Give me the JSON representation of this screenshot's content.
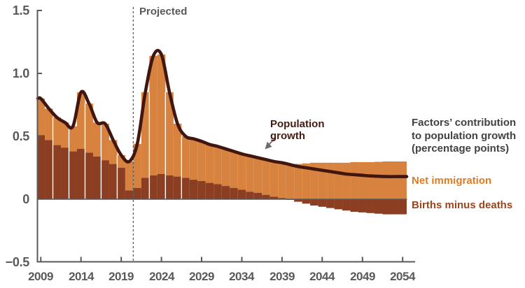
{
  "chart_data": {
    "type": "bar",
    "subtype": "stacked-bars-with-line",
    "title": "",
    "xlabel": "",
    "ylabel": "",
    "grid": "off",
    "ylim": [
      -0.5,
      1.5
    ],
    "x": [
      2009,
      2010,
      2011,
      2012,
      2013,
      2014,
      2015,
      2016,
      2017,
      2018,
      2019,
      2020,
      2021,
      2022,
      2023,
      2024,
      2025,
      2026,
      2027,
      2028,
      2029,
      2030,
      2031,
      2032,
      2033,
      2034,
      2035,
      2036,
      2037,
      2038,
      2039,
      2040,
      2041,
      2042,
      2043,
      2044,
      2045,
      2046,
      2047,
      2048,
      2049,
      2050,
      2051,
      2052,
      2053,
      2054
    ],
    "series": [
      {
        "name": "Births minus deaths",
        "kind": "bar",
        "color": "#8B3E21",
        "values": [
          0.51,
          0.47,
          0.43,
          0.41,
          0.38,
          0.4,
          0.37,
          0.34,
          0.31,
          0.28,
          0.25,
          0.07,
          0.09,
          0.17,
          0.19,
          0.2,
          0.19,
          0.18,
          0.17,
          0.155,
          0.145,
          0.13,
          0.12,
          0.105,
          0.09,
          0.075,
          0.06,
          0.05,
          0.035,
          0.02,
          0.01,
          -0.005,
          -0.02,
          -0.035,
          -0.05,
          -0.06,
          -0.07,
          -0.08,
          -0.09,
          -0.1,
          -0.105,
          -0.11,
          -0.115,
          -0.12,
          -0.12,
          -0.12
        ]
      },
      {
        "name": "Net immigration",
        "kind": "bar",
        "color": "#D7823E",
        "values": [
          0.29,
          0.25,
          0.22,
          0.2,
          0.2,
          0.45,
          0.39,
          0.27,
          0.29,
          0.19,
          0.1,
          0.23,
          0.35,
          0.68,
          0.95,
          0.95,
          0.66,
          0.42,
          0.33,
          0.325,
          0.315,
          0.305,
          0.3,
          0.295,
          0.29,
          0.285,
          0.285,
          0.28,
          0.28,
          0.28,
          0.28,
          0.28,
          0.28,
          0.285,
          0.29,
          0.29,
          0.29,
          0.29,
          0.29,
          0.295,
          0.295,
          0.295,
          0.297,
          0.3,
          0.3,
          0.3
        ]
      },
      {
        "name": "Population growth",
        "kind": "line",
        "color": "#40160F",
        "values": [
          0.8,
          0.72,
          0.65,
          0.61,
          0.58,
          0.85,
          0.76,
          0.61,
          0.6,
          0.47,
          0.35,
          0.3,
          0.44,
          0.85,
          1.14,
          1.15,
          0.85,
          0.6,
          0.5,
          0.48,
          0.46,
          0.435,
          0.42,
          0.4,
          0.38,
          0.36,
          0.345,
          0.33,
          0.315,
          0.3,
          0.29,
          0.275,
          0.26,
          0.25,
          0.24,
          0.23,
          0.22,
          0.21,
          0.2,
          0.195,
          0.19,
          0.185,
          0.182,
          0.18,
          0.18,
          0.18
        ]
      }
    ],
    "ytick_labels": [
      "1.5",
      "1.0",
      "0.5",
      "0",
      "−0.5"
    ],
    "ytick_values": [
      1.5,
      1.0,
      0.5,
      0,
      -0.5
    ],
    "xtick_labels": [
      "2009",
      "2014",
      "2019",
      "2024",
      "2029",
      "2034",
      "2039",
      "2044",
      "2049",
      "2054"
    ],
    "xtick_values": [
      2009,
      2014,
      2019,
      2024,
      2029,
      2034,
      2039,
      2044,
      2049,
      2054
    ],
    "projected_boundary_year": 2021,
    "separator_boundary_years": [
      2011,
      2013,
      2015,
      2017,
      2019,
      2023,
      2025,
      2027
    ],
    "annotations": {
      "projected_label": "Projected",
      "line_label_lines": [
        "Population",
        "growth"
      ],
      "legend_title_lines": [
        "Factors’ contribution",
        "to population growth",
        "(percentage points)"
      ],
      "legend_items": [
        {
          "label": "Net immigration",
          "color": "#DC7C28"
        },
        {
          "label": "Births minus deaths",
          "color": "#9A451E"
        }
      ]
    },
    "colors": {
      "axis": "#58595B",
      "legend_title_text": "#414042",
      "annotation_arrow": "#6D6E71",
      "bar_separator": "#FFFFFF"
    }
  }
}
